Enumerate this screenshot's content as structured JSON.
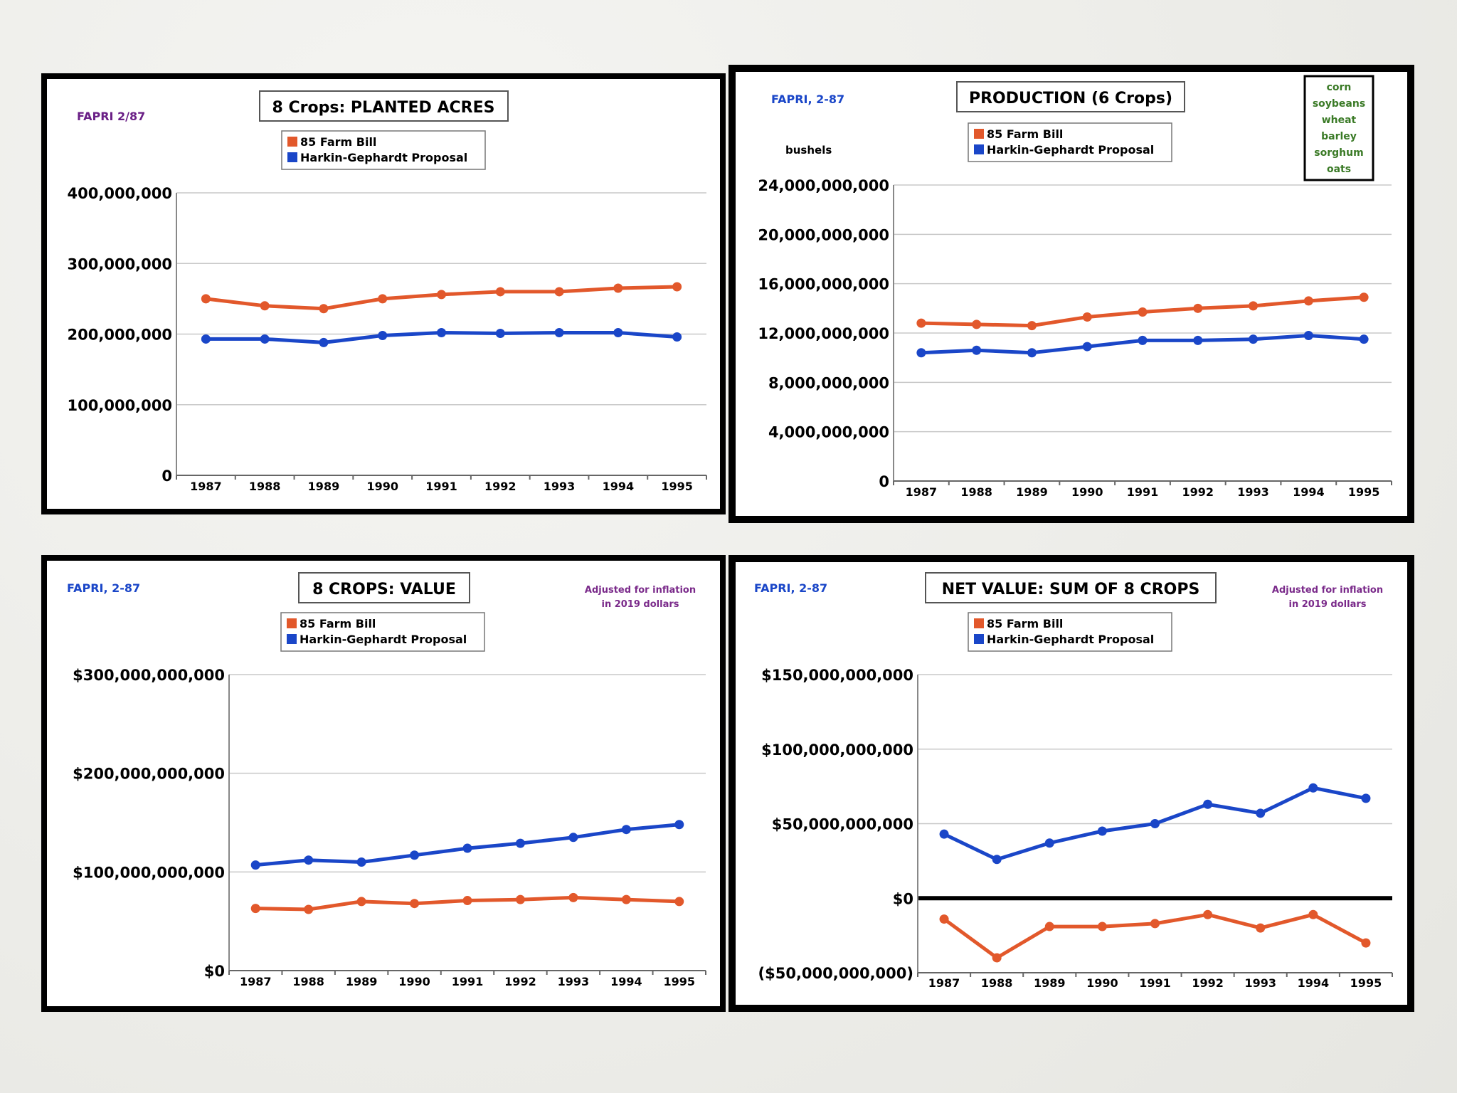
{
  "colors": {
    "farm_bill": "#e2582b",
    "harkin": "#1a46c8",
    "source": "#1a46c8",
    "source_alt": "#6a1f86",
    "crops_note": "#3a7a26",
    "inflation_note": "#7a2a8a"
  },
  "chart_data": [
    {
      "type": "line",
      "title": "8 Crops:  PLANTED ACRES",
      "source": "FAPRI 2/87",
      "ylabel": "",
      "xlabel": "",
      "categories": [
        "1987",
        "1988",
        "1989",
        "1990",
        "1991",
        "1992",
        "1993",
        "1994",
        "1995"
      ],
      "ylim": [
        0,
        400000000
      ],
      "ytick_labels": [
        "0",
        "100,000,000",
        "200,000,000",
        "300,000,000",
        "400,000,000"
      ],
      "ytick_values": [
        0,
        100000000,
        200000000,
        300000000,
        400000000
      ],
      "series": [
        {
          "name": "85 Farm Bill",
          "values": [
            250000000,
            240000000,
            236000000,
            250000000,
            256000000,
            260000000,
            260000000,
            265000000,
            267000000
          ]
        },
        {
          "name": "Harkin-Gephardt Proposal",
          "values": [
            193000000,
            193000000,
            188000000,
            198000000,
            202000000,
            201000000,
            202000000,
            202000000,
            196000000
          ]
        }
      ],
      "legend": "top-center",
      "grid": true
    },
    {
      "type": "line",
      "title": "PRODUCTION  (6 Crops)",
      "source": "FAPRI, 2-87",
      "ylabel": "bushels",
      "xlabel": "",
      "crops_list": [
        "corn",
        "soybeans",
        "wheat",
        "barley",
        "sorghum",
        "oats"
      ],
      "categories": [
        "1987",
        "1988",
        "1989",
        "1990",
        "1991",
        "1992",
        "1993",
        "1994",
        "1995"
      ],
      "ylim": [
        0,
        24000000000
      ],
      "ytick_labels": [
        "0",
        "4,000,000,000",
        "8,000,000,000",
        "12,000,000,000",
        "16,000,000,000",
        "20,000,000,000",
        "24,000,000,000"
      ],
      "ytick_values": [
        0,
        4000000000,
        8000000000,
        12000000000,
        16000000000,
        20000000000,
        24000000000
      ],
      "series": [
        {
          "name": "85 Farm Bill",
          "values": [
            12800000000,
            12700000000,
            12600000000,
            13300000000,
            13700000000,
            14000000000,
            14200000000,
            14600000000,
            14900000000
          ]
        },
        {
          "name": "Harkin-Gephardt Proposal",
          "values": [
            10400000000,
            10600000000,
            10400000000,
            10900000000,
            11400000000,
            11400000000,
            11500000000,
            11800000000,
            11500000000
          ]
        }
      ],
      "legend": "top-center",
      "grid": true
    },
    {
      "type": "line",
      "title": "8 CROPS:  VALUE",
      "source": "FAPRI, 2-87",
      "note": [
        "Adjusted for inflation",
        "in 2019 dollars"
      ],
      "ylabel": "",
      "xlabel": "",
      "categories": [
        "1987",
        "1988",
        "1989",
        "1990",
        "1991",
        "1992",
        "1993",
        "1994",
        "1995"
      ],
      "ylim": [
        0,
        300000000000
      ],
      "ytick_labels": [
        "$0",
        "$100,000,000,000",
        "$200,000,000,000",
        "$300,000,000,000"
      ],
      "ytick_values": [
        0,
        100000000000,
        200000000000,
        300000000000
      ],
      "series": [
        {
          "name": "85 Farm Bill",
          "values": [
            63000000000,
            62000000000,
            70000000000,
            68000000000,
            71000000000,
            72000000000,
            74000000000,
            72000000000,
            70000000000
          ]
        },
        {
          "name": "Harkin-Gephardt Proposal",
          "values": [
            107000000000,
            112000000000,
            110000000000,
            117000000000,
            124000000000,
            129000000000,
            135000000000,
            143000000000,
            148000000000
          ]
        }
      ],
      "legend": "top-center",
      "grid": true
    },
    {
      "type": "line",
      "title": "NET VALUE:  SUM OF 8 CROPS",
      "source": "FAPRI, 2-87",
      "note": [
        "Adjusted for inflation",
        "in 2019 dollars"
      ],
      "ylabel": "",
      "xlabel": "",
      "categories": [
        "1987",
        "1988",
        "1989",
        "1990",
        "1991",
        "1992",
        "1993",
        "1994",
        "1995"
      ],
      "ylim": [
        -50000000000,
        150000000000
      ],
      "ytick_labels": [
        "($50,000,000,000)",
        "$0",
        "$50,000,000,000",
        "$100,000,000,000",
        "$150,000,000,000"
      ],
      "ytick_values": [
        -50000000000,
        0,
        50000000000,
        100000000000,
        150000000000
      ],
      "series": [
        {
          "name": "85 Farm Bill",
          "values": [
            -14000000000,
            -40000000000,
            -19000000000,
            -19000000000,
            -17000000000,
            -11000000000,
            -20000000000,
            -11000000000,
            -30000000000
          ]
        },
        {
          "name": "Harkin-Gephardt Proposal",
          "values": [
            43000000000,
            26000000000,
            37000000000,
            45000000000,
            50000000000,
            63000000000,
            57000000000,
            74000000000,
            67000000000
          ]
        }
      ],
      "legend": "top-center",
      "grid": true
    }
  ]
}
